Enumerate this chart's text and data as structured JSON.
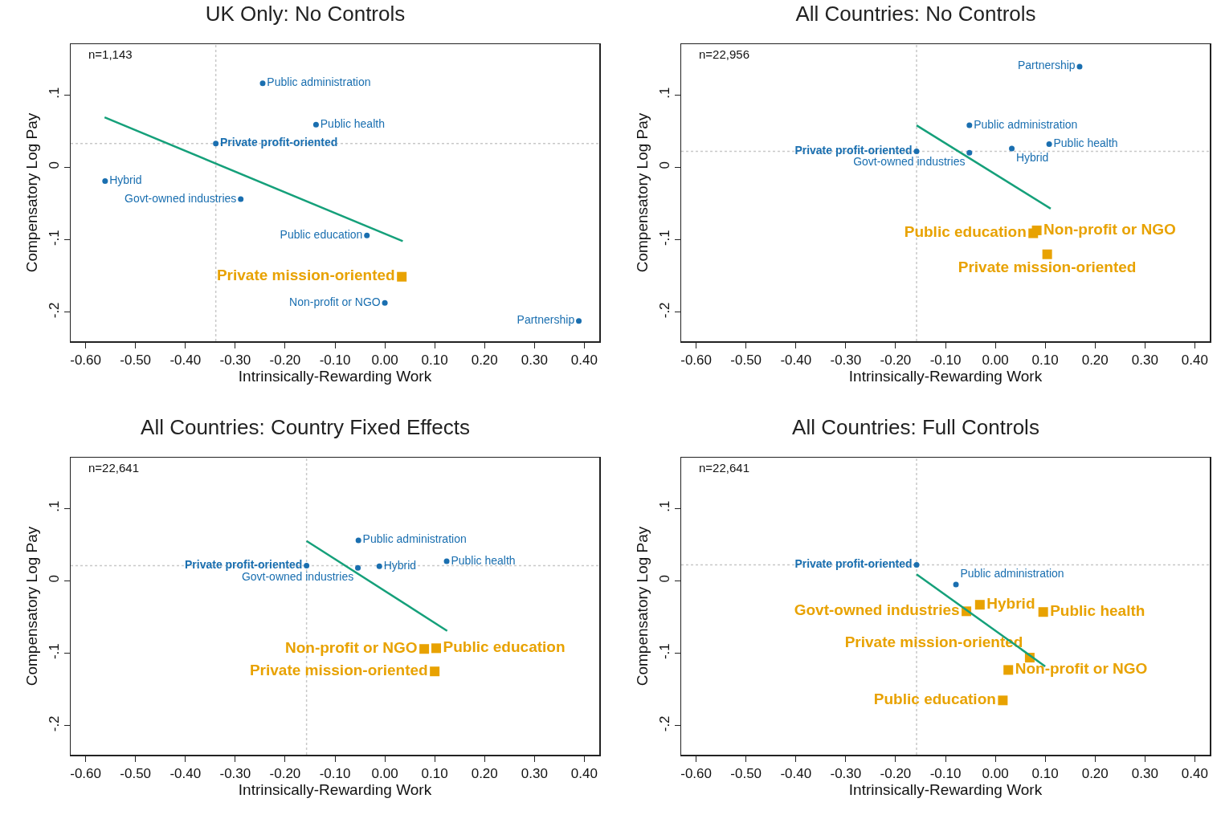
{
  "chart_data": [
    {
      "type": "scatter",
      "title": "UK Only: No Controls",
      "xlabel": "Intrinsically-Rewarding Work",
      "ylabel": "Compensatory Log Pay",
      "xlim": [
        -0.63,
        0.43
      ],
      "ylim": [
        -0.24,
        0.17
      ],
      "xticks": [
        {
          "value": -0.6,
          "label": "-0.60"
        },
        {
          "value": -0.5,
          "label": "-0.50"
        },
        {
          "value": -0.4,
          "label": "-0.40"
        },
        {
          "value": -0.3,
          "label": "-0.30"
        },
        {
          "value": -0.2,
          "label": "-0.20"
        },
        {
          "value": -0.1,
          "label": "-0.10"
        },
        {
          "value": 0,
          "label": "0.00"
        },
        {
          "value": 0.1,
          "label": "0.10"
        },
        {
          "value": 0.2,
          "label": "0.20"
        },
        {
          "value": 0.3,
          "label": "0.30"
        },
        {
          "value": 0.4,
          "label": "0.40"
        }
      ],
      "yticks": [
        {
          "value": -0.2,
          "label": "-.2"
        },
        {
          "value": -0.1,
          "label": "-.1"
        },
        {
          "value": 0,
          "label": "0"
        },
        {
          "value": 0.1,
          "label": ".1"
        }
      ],
      "annotations": [
        "n=1,143"
      ],
      "ref_lines": [
        {
          "axis": "x",
          "value": -0.339,
          "color": "#c8c8c8",
          "line_style": "dotted"
        },
        {
          "axis": "y",
          "value": 0.033,
          "color": "#c8c8c8",
          "line_style": "dotted"
        }
      ],
      "series": [
        {
          "name": "Public administration",
          "color": "#1a6fb0",
          "marker": "circle",
          "x": [
            -0.245
          ],
          "values": [
            0.116
          ]
        },
        {
          "name": "Public health",
          "color": "#1a6fb0",
          "marker": "circle",
          "x": [
            -0.138
          ],
          "values": [
            0.059
          ]
        },
        {
          "name": "Private profit-oriented",
          "color": "#1a6fb0",
          "marker": "circle",
          "x": [
            -0.339
          ],
          "values": [
            0.033
          ]
        },
        {
          "name": "Hybrid",
          "color": "#1a6fb0",
          "marker": "circle",
          "x": [
            -0.561
          ],
          "values": [
            -0.019
          ]
        },
        {
          "name": "Govt-owned industries",
          "color": "#1a6fb0",
          "marker": "circle",
          "x": [
            -0.289
          ],
          "values": [
            -0.044
          ]
        },
        {
          "name": "Public education",
          "color": "#1a6fb0",
          "marker": "circle",
          "x": [
            -0.036
          ],
          "values": [
            -0.094
          ]
        },
        {
          "name": "Private mission-oriented",
          "color": "#e8a201",
          "marker": "square",
          "x": [
            0.034
          ],
          "values": [
            -0.151
          ]
        },
        {
          "name": "Non-profit or NGO",
          "color": "#1a6fb0",
          "marker": "circle",
          "x": [
            0.0
          ],
          "values": [
            -0.187
          ]
        },
        {
          "name": "Partnership",
          "color": "#1a6fb0",
          "marker": "circle",
          "x": [
            0.389
          ],
          "values": [
            -0.212
          ]
        },
        {
          "type": "line",
          "color": "#15a07a",
          "marker": "none",
          "x": [
            -0.562,
            0.036
          ],
          "values": [
            0.069,
            -0.102
          ]
        }
      ]
    },
    {
      "type": "scatter",
      "title": "All Countries: No Controls",
      "xlabel": "Intrinsically-Rewarding Work",
      "ylabel": "Compensatory Log Pay",
      "xlim": [
        -0.63,
        0.43
      ],
      "ylim": [
        -0.24,
        0.17
      ],
      "xticks": [
        {
          "value": -0.6,
          "label": "-0.60"
        },
        {
          "value": -0.5,
          "label": "-0.50"
        },
        {
          "value": -0.4,
          "label": "-0.40"
        },
        {
          "value": -0.3,
          "label": "-0.30"
        },
        {
          "value": -0.2,
          "label": "-0.20"
        },
        {
          "value": -0.1,
          "label": "-0.10"
        },
        {
          "value": 0,
          "label": "0.00"
        },
        {
          "value": 0.1,
          "label": "0.10"
        },
        {
          "value": 0.2,
          "label": "0.20"
        },
        {
          "value": 0.3,
          "label": "0.30"
        },
        {
          "value": 0.4,
          "label": "0.40"
        }
      ],
      "yticks": [
        {
          "value": -0.2,
          "label": "-.2"
        },
        {
          "value": -0.1,
          "label": "-.1"
        },
        {
          "value": 0,
          "label": "0"
        },
        {
          "value": 0.1,
          "label": ".1"
        }
      ],
      "annotations": [
        "n=22,956"
      ],
      "ref_lines": [
        {
          "axis": "x",
          "value": -0.158,
          "color": "#c8c8c8",
          "line_style": "dotted"
        },
        {
          "axis": "y",
          "value": 0.022,
          "color": "#c8c8c8",
          "line_style": "dotted"
        }
      ],
      "series": [
        {
          "name": "Partnership",
          "color": "#1a6fb0",
          "marker": "circle",
          "x": [
            0.169
          ],
          "values": [
            0.139
          ]
        },
        {
          "name": "Public administration",
          "color": "#1a6fb0",
          "marker": "circle",
          "x": [
            -0.052
          ],
          "values": [
            0.058
          ]
        },
        {
          "name": "Public health",
          "color": "#1a6fb0",
          "marker": "circle",
          "x": [
            0.108
          ],
          "values": [
            0.032
          ]
        },
        {
          "name": "Hybrid",
          "color": "#1a6fb0",
          "marker": "circle",
          "x": [
            0.033
          ],
          "values": [
            0.026
          ]
        },
        {
          "name": "Govt-owned industries",
          "color": "#1a6fb0",
          "marker": "circle",
          "x": [
            -0.052
          ],
          "values": [
            0.02
          ]
        },
        {
          "name": "Private profit-oriented",
          "color": "#1a6fb0",
          "marker": "circle",
          "x": [
            -0.158
          ],
          "values": [
            0.022
          ]
        },
        {
          "name": "Public education",
          "color": "#e8a201",
          "marker": "square",
          "x": [
            0.076
          ],
          "values": [
            -0.091
          ]
        },
        {
          "name": "Non-profit or NGO",
          "color": "#e8a201",
          "marker": "square",
          "x": [
            0.083
          ],
          "values": [
            -0.087
          ]
        },
        {
          "name": "Private mission-oriented",
          "color": "#e8a201",
          "marker": "square",
          "x": [
            0.104
          ],
          "values": [
            -0.12
          ]
        },
        {
          "type": "line",
          "color": "#15a07a",
          "marker": "none",
          "x": [
            -0.158,
            0.111
          ],
          "values": [
            0.058,
            -0.057
          ]
        }
      ]
    },
    {
      "type": "scatter",
      "title": "All Countries: Country Fixed Effects",
      "xlabel": "Intrinsically-Rewarding Work",
      "ylabel": "Compensatory Log Pay",
      "xlim": [
        -0.63,
        0.43
      ],
      "ylim": [
        -0.24,
        0.17
      ],
      "xticks": [
        {
          "value": -0.6,
          "label": "-0.60"
        },
        {
          "value": -0.5,
          "label": "-0.50"
        },
        {
          "value": -0.4,
          "label": "-0.40"
        },
        {
          "value": -0.3,
          "label": "-0.30"
        },
        {
          "value": -0.2,
          "label": "-0.20"
        },
        {
          "value": -0.1,
          "label": "-0.10"
        },
        {
          "value": 0,
          "label": "0.00"
        },
        {
          "value": 0.1,
          "label": "0.10"
        },
        {
          "value": 0.2,
          "label": "0.20"
        },
        {
          "value": 0.3,
          "label": "0.30"
        },
        {
          "value": 0.4,
          "label": "0.40"
        }
      ],
      "yticks": [
        {
          "value": -0.2,
          "label": "-.2"
        },
        {
          "value": -0.1,
          "label": "-.1"
        },
        {
          "value": 0,
          "label": "0"
        },
        {
          "value": 0.1,
          "label": ".1"
        }
      ],
      "annotations": [
        "n=22,641"
      ],
      "ref_lines": [
        {
          "axis": "x",
          "value": -0.157,
          "color": "#c8c8c8",
          "line_style": "dotted"
        },
        {
          "axis": "y",
          "value": 0.021,
          "color": "#c8c8c8",
          "line_style": "dotted"
        }
      ],
      "series": [
        {
          "name": "Public administration",
          "color": "#1a6fb0",
          "marker": "circle",
          "x": [
            -0.053
          ],
          "values": [
            0.056
          ]
        },
        {
          "name": "Private profit-oriented",
          "color": "#1a6fb0",
          "marker": "circle",
          "x": [
            -0.157
          ],
          "values": [
            0.021
          ]
        },
        {
          "name": "Govt-owned industries",
          "color": "#1a6fb0",
          "marker": "circle",
          "x": [
            -0.054
          ],
          "values": [
            0.018
          ]
        },
        {
          "name": "Hybrid",
          "color": "#1a6fb0",
          "marker": "circle",
          "x": [
            -0.011
          ],
          "values": [
            0.02
          ]
        },
        {
          "name": "Public health",
          "color": "#1a6fb0",
          "marker": "circle",
          "x": [
            0.124
          ],
          "values": [
            0.027
          ]
        },
        {
          "name": "Non-profit or NGO",
          "color": "#e8a201",
          "marker": "square",
          "x": [
            0.079
          ],
          "values": [
            -0.094
          ]
        },
        {
          "name": "Public education",
          "color": "#e8a201",
          "marker": "square",
          "x": [
            0.103
          ],
          "values": [
            -0.093
          ]
        },
        {
          "name": "Private mission-oriented",
          "color": "#e8a201",
          "marker": "square",
          "x": [
            0.1
          ],
          "values": [
            -0.125
          ]
        },
        {
          "type": "line",
          "color": "#15a07a",
          "marker": "none",
          "x": [
            -0.157,
            0.125
          ],
          "values": [
            0.055,
            -0.069
          ]
        }
      ]
    },
    {
      "type": "scatter",
      "title": "All Countries: Full Controls",
      "xlabel": "Intrinsically-Rewarding Work",
      "ylabel": "Compensatory Log Pay",
      "xlim": [
        -0.63,
        0.43
      ],
      "ylim": [
        -0.24,
        0.17
      ],
      "xticks": [
        {
          "value": -0.6,
          "label": "-0.60"
        },
        {
          "value": -0.5,
          "label": "-0.50"
        },
        {
          "value": -0.4,
          "label": "-0.40"
        },
        {
          "value": -0.3,
          "label": "-0.30"
        },
        {
          "value": -0.2,
          "label": "-0.20"
        },
        {
          "value": -0.1,
          "label": "-0.10"
        },
        {
          "value": 0,
          "label": "0.00"
        },
        {
          "value": 0.1,
          "label": "0.10"
        },
        {
          "value": 0.2,
          "label": "0.20"
        },
        {
          "value": 0.3,
          "label": "0.30"
        },
        {
          "value": 0.4,
          "label": "0.40"
        }
      ],
      "yticks": [
        {
          "value": -0.2,
          "label": "-.2"
        },
        {
          "value": -0.1,
          "label": "-.1"
        },
        {
          "value": 0,
          "label": "0"
        },
        {
          "value": 0.1,
          "label": ".1"
        }
      ],
      "annotations": [
        "n=22,641"
      ],
      "ref_lines": [
        {
          "axis": "x",
          "value": -0.158,
          "color": "#c8c8c8",
          "line_style": "dotted"
        },
        {
          "axis": "y",
          "value": 0.022,
          "color": "#c8c8c8",
          "line_style": "dotted"
        }
      ],
      "series": [
        {
          "name": "Private profit-oriented",
          "color": "#1a6fb0",
          "marker": "circle",
          "x": [
            -0.158
          ],
          "values": [
            0.022
          ]
        },
        {
          "name": "Public administration",
          "color": "#1a6fb0",
          "marker": "circle",
          "x": [
            -0.079
          ],
          "values": [
            -0.005
          ]
        },
        {
          "name": "Govt-owned industries",
          "color": "#e8a201",
          "marker": "square",
          "x": [
            -0.058
          ],
          "values": [
            -0.042
          ]
        },
        {
          "name": "Hybrid",
          "color": "#e8a201",
          "marker": "square",
          "x": [
            -0.031
          ],
          "values": [
            -0.033
          ]
        },
        {
          "name": "Public health",
          "color": "#e8a201",
          "marker": "square",
          "x": [
            0.096
          ],
          "values": [
            -0.043
          ]
        },
        {
          "name": "Private mission-oriented",
          "color": "#e8a201",
          "marker": "square",
          "x": [
            0.069
          ],
          "values": [
            -0.106
          ]
        },
        {
          "name": "Non-profit or NGO",
          "color": "#e8a201",
          "marker": "square",
          "x": [
            0.026
          ],
          "values": [
            -0.123
          ]
        },
        {
          "name": "Public education",
          "color": "#e8a201",
          "marker": "square",
          "x": [
            0.015
          ],
          "values": [
            -0.165
          ]
        },
        {
          "type": "line",
          "color": "#15a07a",
          "marker": "none",
          "x": [
            -0.158,
            0.1
          ],
          "values": [
            0.009,
            -0.118
          ]
        }
      ]
    }
  ]
}
